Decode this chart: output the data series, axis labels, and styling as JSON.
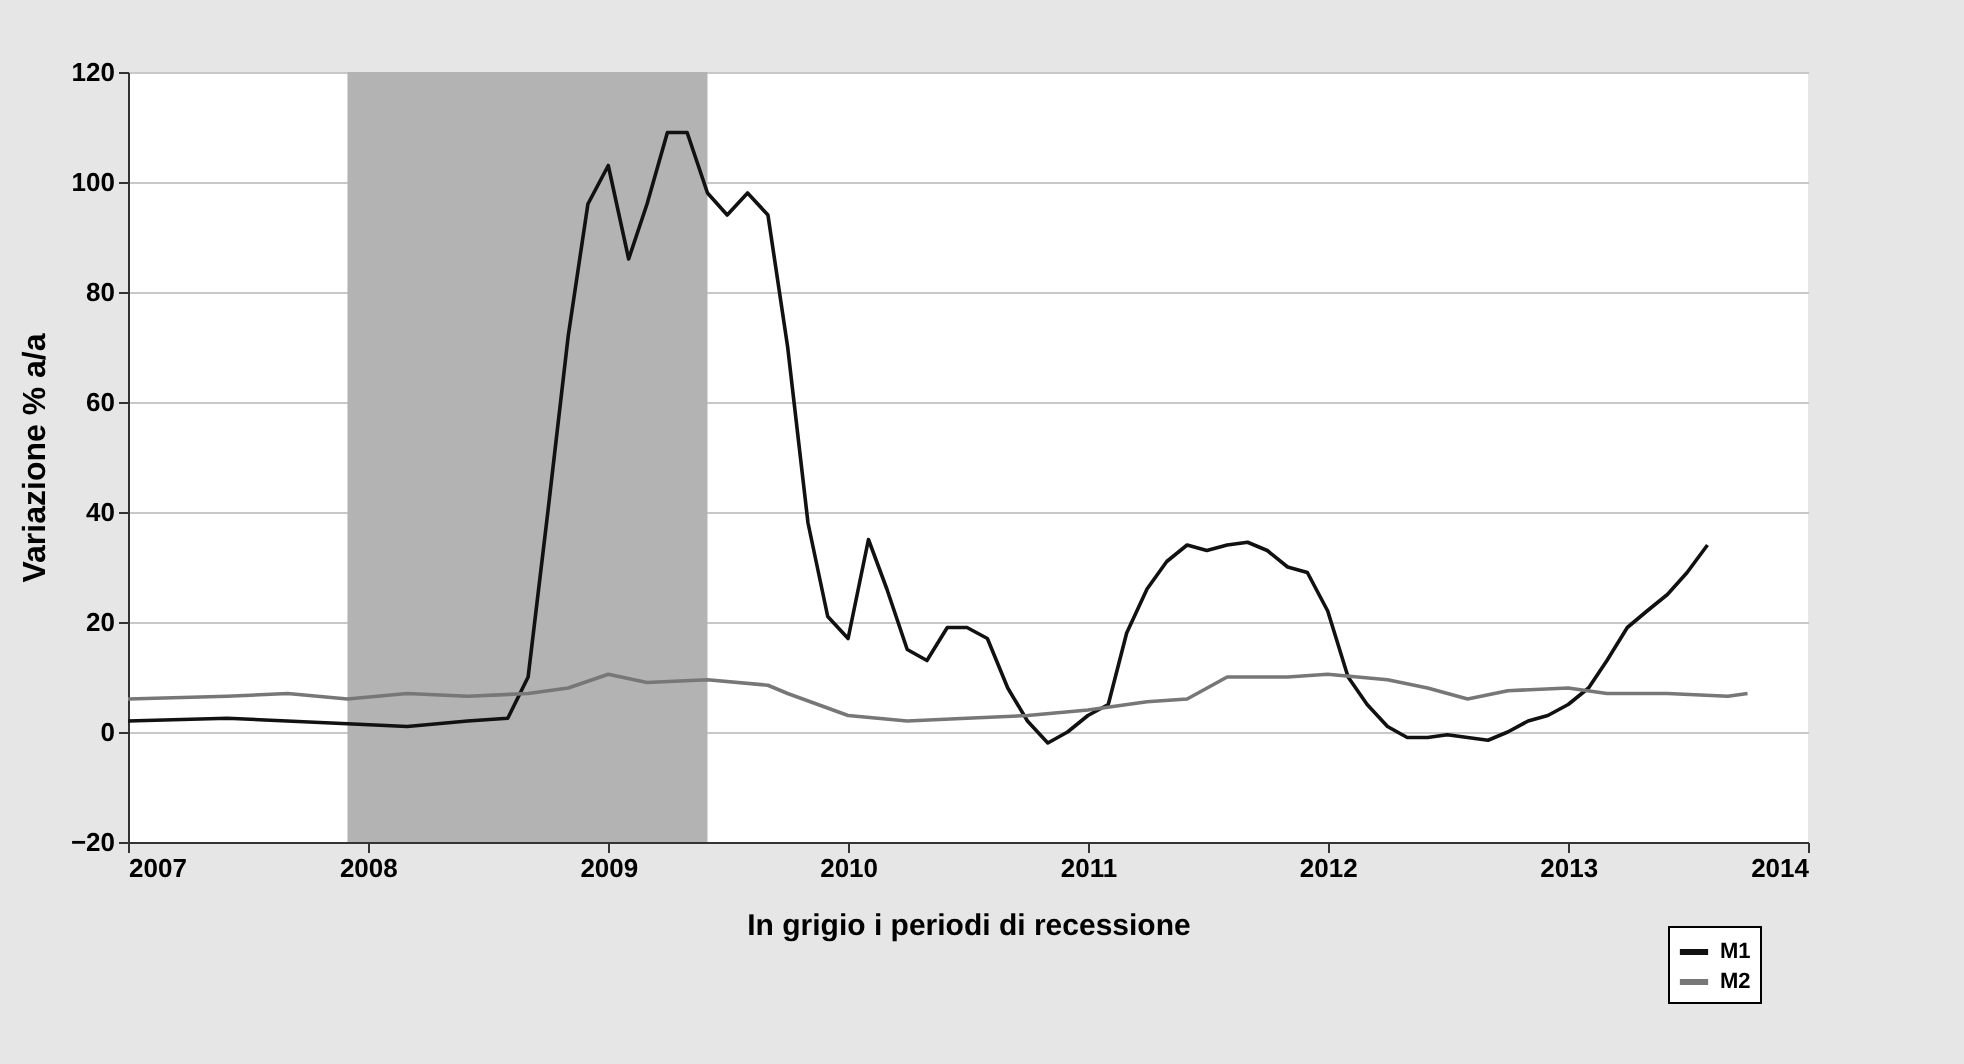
{
  "chart_data": {
    "type": "line",
    "xlabel": "In grigio i periodi di recessione",
    "ylabel": "Variazione % a/a",
    "xlim": [
      "2007",
      "2014"
    ],
    "xticks": [
      "2007",
      "2008",
      "2009",
      "2010",
      "2011",
      "2012",
      "2013",
      "2014"
    ],
    "ylim": [
      -20,
      120
    ],
    "yticks": [
      -20,
      0,
      20,
      40,
      60,
      80,
      100,
      120
    ],
    "grid": "y",
    "legend": "bottom right",
    "bands": [
      {
        "axis": "x",
        "from": "2007-12",
        "to": "2009-06",
        "color": "#b3b3b3"
      }
    ],
    "series": [
      {
        "name": "M1",
        "color": "#111111",
        "x": [
          "2007-01",
          "2007-06",
          "2007-12",
          "2008-03",
          "2008-06",
          "2008-08",
          "2008-09",
          "2008-10",
          "2008-11",
          "2008-12",
          "2009-01",
          "2009-02",
          "2009-03",
          "2009-04",
          "2009-05",
          "2009-06",
          "2009-07",
          "2009-08",
          "2009-09",
          "2009-10",
          "2009-11",
          "2009-12",
          "2010-01",
          "2010-02",
          "2010-03",
          "2010-04",
          "2010-05",
          "2010-06",
          "2010-07",
          "2010-08",
          "2010-09",
          "2010-10",
          "2010-11",
          "2010-12",
          "2011-01",
          "2011-02",
          "2011-03",
          "2011-04",
          "2011-05",
          "2011-06",
          "2011-07",
          "2011-08",
          "2011-09",
          "2011-10",
          "2011-11",
          "2011-12",
          "2012-01",
          "2012-02",
          "2012-03",
          "2012-04",
          "2012-05",
          "2012-06",
          "2012-07",
          "2012-08",
          "2012-09",
          "2012-10",
          "2012-11",
          "2012-12",
          "2013-01",
          "2013-02",
          "2013-03",
          "2013-04",
          "2013-05",
          "2013-06",
          "2013-07",
          "2013-08"
        ],
        "values": [
          2,
          2.5,
          1.5,
          1,
          2,
          2.5,
          10,
          40,
          72,
          96,
          103,
          86,
          96,
          109,
          109,
          98,
          94,
          98,
          94,
          70,
          38,
          21,
          17,
          35,
          26,
          15,
          13,
          19,
          19,
          17,
          8,
          2,
          -2,
          0,
          3,
          5,
          18,
          26,
          31,
          34,
          33,
          34,
          34.5,
          33,
          30,
          29,
          22,
          10,
          5,
          1,
          -1,
          -1,
          -0.5,
          -1,
          -1.5,
          0,
          2,
          3,
          5,
          8,
          13,
          19,
          22,
          25,
          29,
          34
        ]
      },
      {
        "name": "M2",
        "color": "#777777",
        "x": [
          "2007-01",
          "2007-06",
          "2007-09",
          "2007-12",
          "2008-03",
          "2008-06",
          "2008-09",
          "2008-11",
          "2009-01",
          "2009-03",
          "2009-06",
          "2009-09",
          "2009-10",
          "2010-01",
          "2010-04",
          "2010-07",
          "2010-10",
          "2011-01",
          "2011-04",
          "2011-06",
          "2011-08",
          "2011-11",
          "2012-01",
          "2012-04",
          "2012-06",
          "2012-08",
          "2012-10",
          "2013-01",
          "2013-03",
          "2013-06",
          "2013-09",
          "2013-10"
        ],
        "values": [
          6,
          6.5,
          7,
          6,
          7,
          6.5,
          7,
          8,
          10.5,
          9,
          9.5,
          8.5,
          7,
          3,
          2,
          2.5,
          3,
          4,
          5.5,
          6,
          10,
          10,
          10.5,
          9.5,
          8,
          6,
          7.5,
          8,
          7,
          7,
          6.5,
          7
        ]
      }
    ]
  }
}
